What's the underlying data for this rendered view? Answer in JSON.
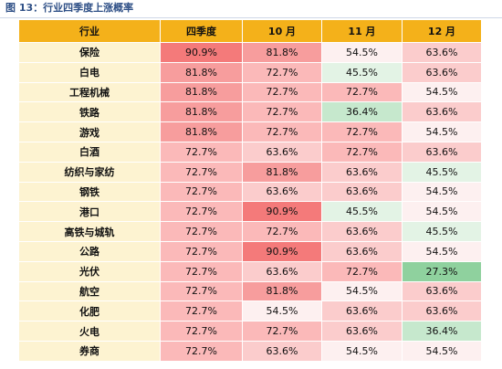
{
  "caption": "图 13：行业四季度上涨概率",
  "table": {
    "headers": [
      "行业",
      "四季度",
      "10 月",
      "11 月",
      "12 月"
    ],
    "rows": [
      {
        "name": "保险",
        "values": [
          "90.9%",
          "81.8%",
          "54.5%",
          "63.6%"
        ]
      },
      {
        "name": "白电",
        "values": [
          "81.8%",
          "72.7%",
          "45.5%",
          "63.6%"
        ]
      },
      {
        "name": "工程机械",
        "values": [
          "81.8%",
          "72.7%",
          "72.7%",
          "54.5%"
        ]
      },
      {
        "name": "铁路",
        "values": [
          "81.8%",
          "72.7%",
          "36.4%",
          "63.6%"
        ]
      },
      {
        "name": "游戏",
        "values": [
          "81.8%",
          "72.7%",
          "72.7%",
          "54.5%"
        ]
      },
      {
        "name": "白酒",
        "values": [
          "72.7%",
          "63.6%",
          "72.7%",
          "63.6%"
        ]
      },
      {
        "name": "纺织与家纺",
        "values": [
          "72.7%",
          "81.8%",
          "63.6%",
          "45.5%"
        ]
      },
      {
        "name": "钢铁",
        "values": [
          "72.7%",
          "63.6%",
          "63.6%",
          "54.5%"
        ]
      },
      {
        "name": "港口",
        "values": [
          "72.7%",
          "90.9%",
          "45.5%",
          "54.5%"
        ]
      },
      {
        "name": "高铁与城轨",
        "values": [
          "72.7%",
          "72.7%",
          "63.6%",
          "45.5%"
        ]
      },
      {
        "name": "公路",
        "values": [
          "72.7%",
          "90.9%",
          "63.6%",
          "54.5%"
        ]
      },
      {
        "name": "光伏",
        "values": [
          "72.7%",
          "63.6%",
          "72.7%",
          "27.3%"
        ]
      },
      {
        "name": "航空",
        "values": [
          "72.7%",
          "81.8%",
          "54.5%",
          "63.6%"
        ]
      },
      {
        "name": "化肥",
        "values": [
          "72.7%",
          "54.5%",
          "63.6%",
          "63.6%"
        ]
      },
      {
        "name": "火电",
        "values": [
          "72.7%",
          "72.7%",
          "63.6%",
          "36.4%"
        ]
      },
      {
        "name": "券商",
        "values": [
          "72.7%",
          "63.6%",
          "54.5%",
          "54.5%"
        ]
      }
    ]
  },
  "colors": {
    "27.3%": "#8fd19e",
    "36.4%": "#c6e8cd",
    "45.5%": "#e3f3e5",
    "54.5%": "#fdf0f0",
    "63.6%": "#fbcccc",
    "72.7%": "#fbb9b9",
    "81.8%": "#f79d9d",
    "90.9%": "#f47a7a"
  }
}
